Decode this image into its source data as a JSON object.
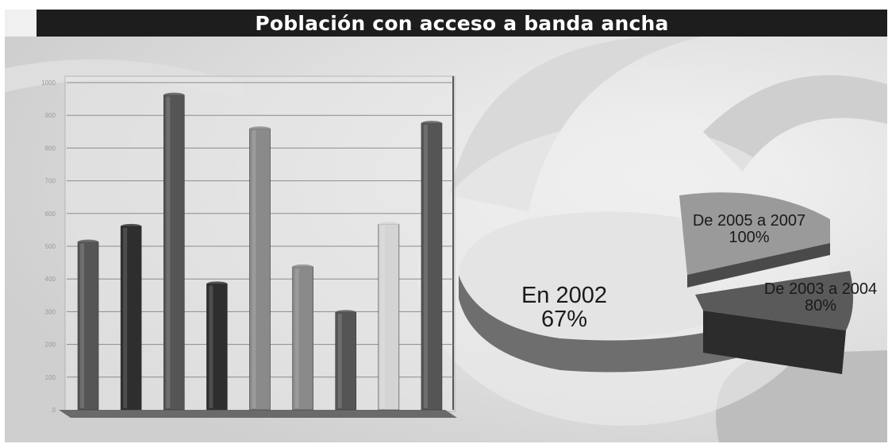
{
  "title": "Población con acceso a banda ancha",
  "colors": {
    "title_bg": "#1d1d1d",
    "title_text": "#ffffff",
    "bar_dark": "#2e2e2e",
    "bar_mid": "#555555",
    "bar_light": "#8a8a8a",
    "bar_pale": "#d4d4d4",
    "pie_top": "#e4e4e4",
    "pie_side": "#6e6e6e"
  },
  "chart_data": [
    {
      "type": "bar",
      "categories": [
        "",
        "",
        "",
        "",
        "",
        "",
        "",
        "",
        ""
      ],
      "values": [
        513,
        561,
        962,
        385,
        859,
        437,
        298,
        567,
        876
      ],
      "ylim": [
        0,
        1000
      ],
      "yticks": [
        "0",
        "100",
        "200",
        "300",
        "400",
        "500",
        "600",
        "700",
        "800",
        "900",
        "1000"
      ],
      "xlabel": "",
      "ylabel": "",
      "grid": true,
      "bar_colors": [
        "#555555",
        "#2e2e2e",
        "#555555",
        "#2e2e2e",
        "#8a8a8a",
        "#8a8a8a",
        "#555555",
        "#d4d4d4",
        "#555555"
      ]
    },
    {
      "type": "pie",
      "slices": [
        {
          "label": "En 2002",
          "value_label": "67%",
          "value": 67
        },
        {
          "label": "De 2005 a 2007",
          "value_label": "100%",
          "value": 100
        },
        {
          "label": "De 2003 a 2004",
          "value_label": "80%",
          "value": 80
        }
      ]
    }
  ]
}
